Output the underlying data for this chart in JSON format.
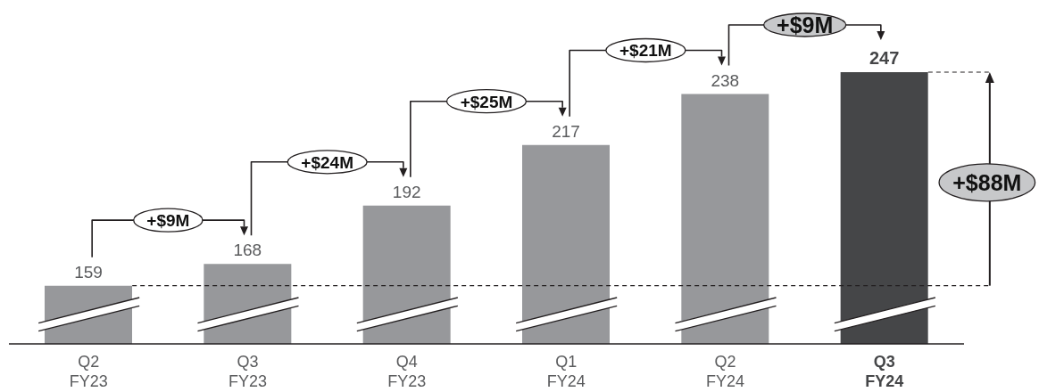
{
  "chart_data": {
    "type": "bar",
    "categories": [
      "Q2\nFY23",
      "Q3\nFY23",
      "Q4\nFY23",
      "Q1\nFY24",
      "Q2\nFY24",
      "Q3\nFY24"
    ],
    "values": [
      159,
      168,
      192,
      217,
      238,
      247
    ],
    "colors": [
      "#97989b",
      "#97989b",
      "#97989b",
      "#97989b",
      "#97989b",
      "#454648"
    ],
    "ylim": [
      135,
      247
    ],
    "tick_labels": "x",
    "data_labels": true,
    "ref_lines": [
      {
        "axis": "y",
        "value": 159,
        "color": "#231f20",
        "line_style": "dashed"
      }
    ],
    "annotations": [
      "+$9M",
      "+$24M",
      "+$25M",
      "+$21M",
      "+$9M",
      "+$88M"
    ]
  }
}
